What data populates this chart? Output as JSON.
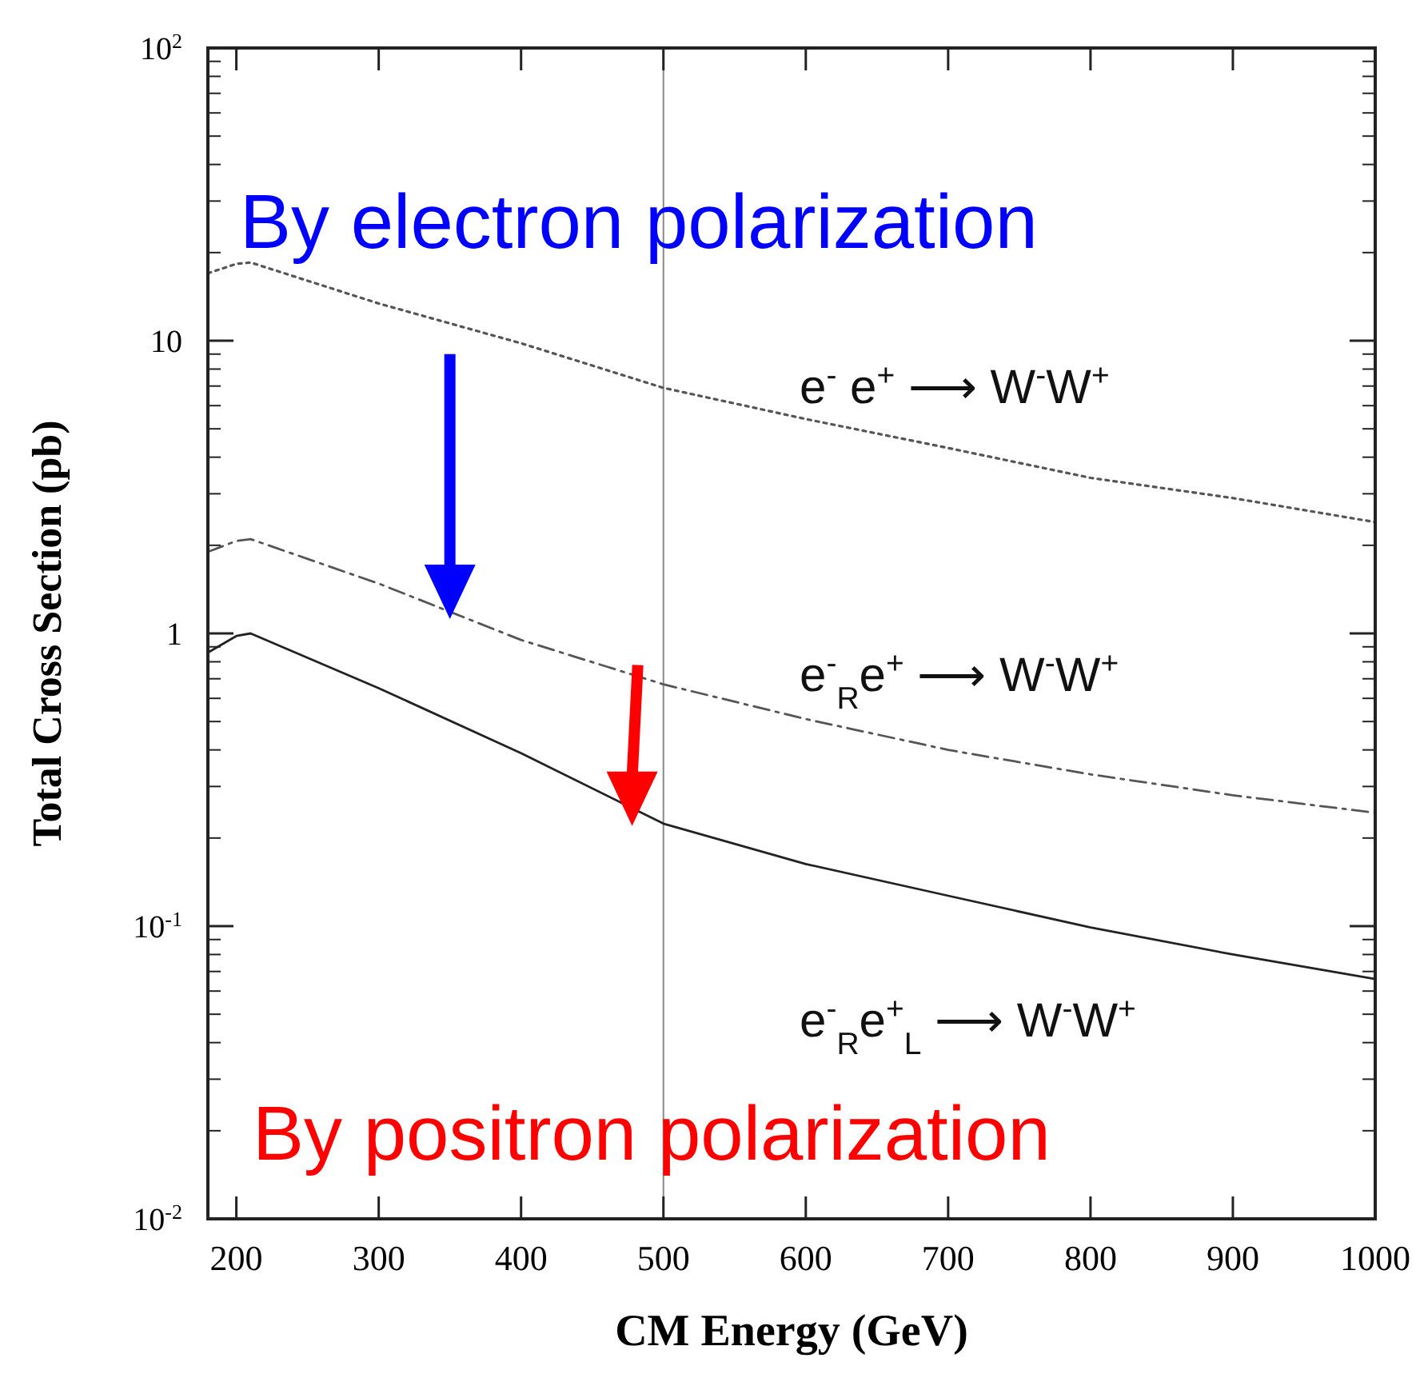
{
  "chart_data": {
    "type": "line",
    "xlabel": "CM  Energy (GeV)",
    "ylabel": "Total Cross Section (pb)",
    "log": "y",
    "xlim": [
      180,
      1000
    ],
    "xticks": [
      200,
      300,
      400,
      500,
      600,
      700,
      800,
      900,
      1000
    ],
    "ylim": [
      0.01,
      100
    ],
    "yticks": [
      {
        "value": 100,
        "label": "10$^{2}$"
      },
      {
        "value": 10,
        "label": "10"
      },
      {
        "value": 1,
        "label": "1"
      },
      {
        "value": 0.1,
        "label": "10$^{-1}$"
      },
      {
        "value": 0.01,
        "label": "10$^{-2}$"
      }
    ],
    "x": [
      180,
      200,
      210,
      300,
      400,
      500,
      600,
      700,
      800,
      900,
      1000
    ],
    "series": [
      {
        "color": "#555555",
        "line_style": "dotted",
        "values": [
          17,
          18.3,
          18.5,
          13.4,
          9.8,
          6.9,
          5.4,
          4.3,
          3.4,
          2.9,
          2.4
        ]
      },
      {
        "color": "#555555",
        "line_style": "dashed",
        "values": [
          1.9,
          2.07,
          2.1,
          1.48,
          0.95,
          0.67,
          0.51,
          0.4,
          0.33,
          0.28,
          0.244
        ]
      },
      {
        "color": "#222222",
        "line_style": "solid",
        "values": [
          0.86,
          0.98,
          1.0,
          0.65,
          0.39,
          0.224,
          0.163,
          0.127,
          0.099,
          0.08,
          0.066
        ]
      }
    ],
    "ref_lines": [
      {
        "axis": "x",
        "value": 500,
        "color": "#888888"
      }
    ],
    "annotations": [
      "By electron polarization",
      "e$^{-}$ e$^{+}$ ⟶ W$^{-}$W$^{+}$",
      "e$^{-}$$_{R}$e$^{+}$ ⟶ W$^{-}$W$^{+}$",
      "e$^{-}$$_{R}$e$^{+}$$_{L}$ ⟶ W$^{-}$W$^{+}$",
      "By positron polarization"
    ]
  }
}
